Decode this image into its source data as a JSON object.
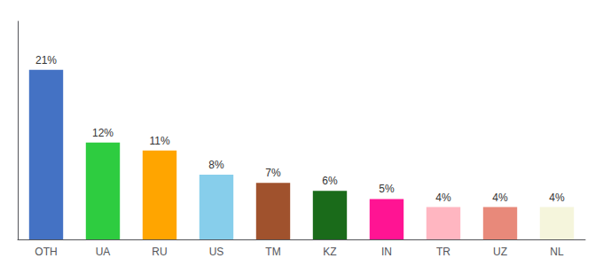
{
  "chart_data": {
    "type": "bar",
    "categories": [
      "OTH",
      "UA",
      "RU",
      "US",
      "TM",
      "KZ",
      "IN",
      "TR",
      "UZ",
      "NL"
    ],
    "values": [
      21,
      12,
      11,
      8,
      7,
      6,
      5,
      4,
      4,
      4
    ],
    "value_labels": [
      "21%",
      "12%",
      "11%",
      "8%",
      "7%",
      "6%",
      "5%",
      "4%",
      "4%",
      "4%"
    ],
    "colors": [
      "#4472C4",
      "#2ECC40",
      "#FFA500",
      "#87CEEB",
      "#A0522D",
      "#1A6B1A",
      "#FF1493",
      "#FFB6C1",
      "#E8897A",
      "#F5F5DC"
    ],
    "ylim": [
      0,
      27
    ],
    "data_labels": true,
    "tick_labels": "x",
    "grid": false
  }
}
